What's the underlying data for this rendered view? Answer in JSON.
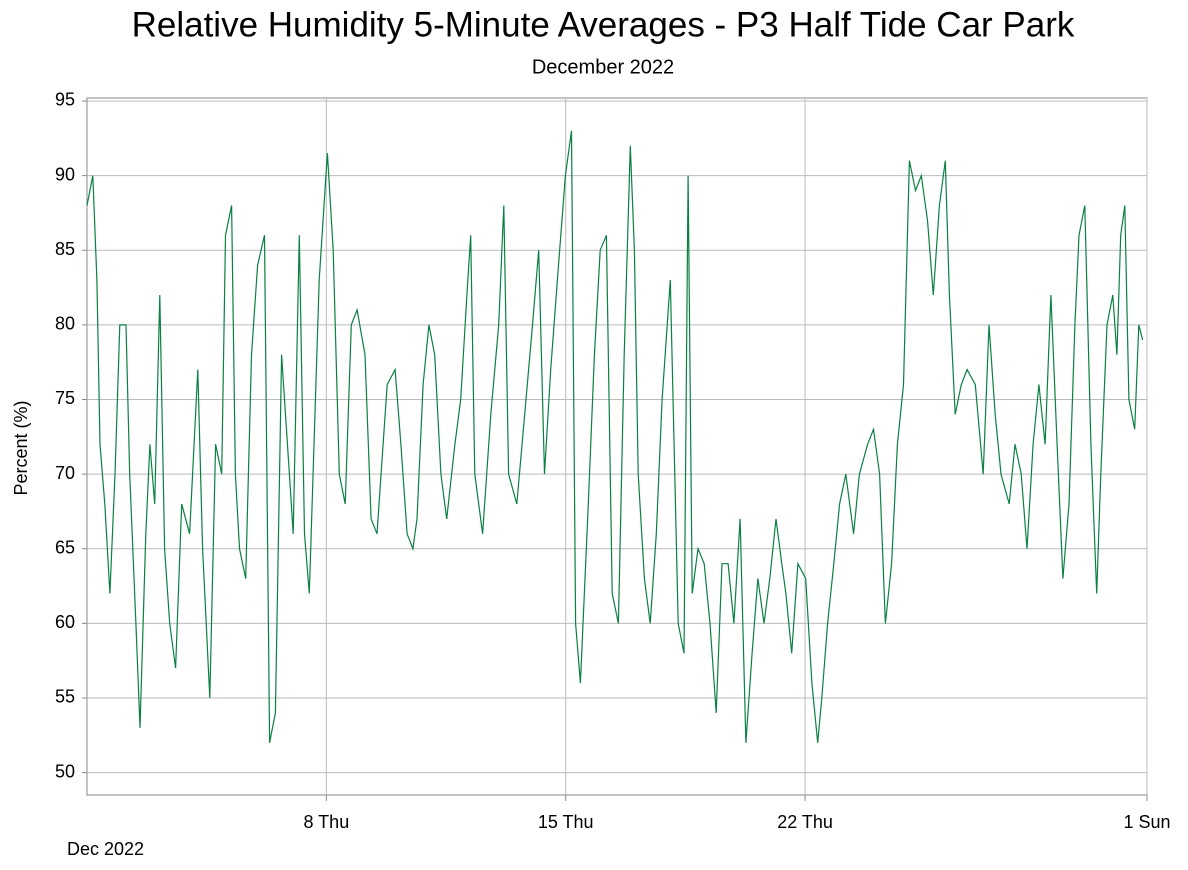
{
  "chart_data": {
    "type": "line",
    "title": "Relative Humidity 5-Minute Averages - P3 Half Tide Car Park",
    "subtitle": "December 2022",
    "ylabel": "Percent (%)",
    "xlabel": "Dec 2022",
    "xlim": [
      1,
      32
    ],
    "xticks": [
      {
        "value": 8,
        "label": "8 Thu"
      },
      {
        "value": 15,
        "label": "15 Thu"
      },
      {
        "value": 22,
        "label": "22 Thu"
      },
      {
        "value": 32,
        "label": "1 Sun"
      }
    ],
    "ylim": [
      48.5,
      95.2
    ],
    "yticks": [
      50,
      55,
      60,
      65,
      70,
      75,
      80,
      85,
      90,
      95
    ],
    "grid": true,
    "x": [
      1.0,
      1.17,
      1.29,
      1.38,
      1.52,
      1.67,
      1.82,
      1.96,
      2.14,
      2.25,
      2.43,
      2.55,
      2.72,
      2.84,
      2.98,
      3.13,
      3.27,
      3.42,
      3.59,
      3.77,
      4.0,
      4.24,
      4.38,
      4.59,
      4.76,
      4.94,
      5.05,
      5.23,
      5.34,
      5.46,
      5.64,
      5.81,
      5.99,
      6.19,
      6.34,
      6.51,
      6.69,
      6.92,
      7.03,
      7.21,
      7.36,
      7.5,
      7.79,
      8.03,
      8.2,
      8.38,
      8.55,
      8.73,
      8.9,
      9.13,
      9.31,
      9.48,
      9.66,
      9.78,
      10.01,
      10.18,
      10.36,
      10.53,
      10.65,
      10.83,
      11.0,
      11.17,
      11.35,
      11.52,
      11.76,
      11.93,
      12.11,
      12.22,
      12.34,
      12.57,
      12.81,
      13.04,
      13.19,
      13.33,
      13.57,
      13.8,
      14.03,
      14.21,
      14.38,
      14.56,
      14.79,
      14.99,
      15.17,
      15.29,
      15.43,
      15.66,
      15.84,
      16.01,
      16.19,
      16.36,
      16.54,
      16.71,
      16.89,
      17.01,
      17.12,
      17.3,
      17.47,
      17.65,
      17.82,
      18.06,
      18.29,
      18.46,
      18.58,
      18.7,
      18.87,
      19.05,
      19.22,
      19.4,
      19.57,
      19.75,
      19.92,
      20.1,
      20.27,
      20.45,
      20.62,
      20.8,
      20.97,
      21.15,
      21.32,
      21.44,
      21.61,
      21.79,
      22.02,
      22.2,
      22.37,
      22.49,
      22.66,
      22.84,
      23.01,
      23.19,
      23.42,
      23.59,
      23.83,
      24.0,
      24.18,
      24.35,
      24.53,
      24.7,
      24.88,
      25.05,
      25.23,
      25.4,
      25.58,
      25.75,
      25.93,
      26.1,
      26.22,
      26.39,
      26.57,
      26.74,
      26.98,
      27.21,
      27.38,
      27.56,
      27.73,
      27.97,
      28.14,
      28.32,
      28.49,
      28.67,
      28.84,
      29.02,
      29.19,
      29.37,
      29.54,
      29.72,
      29.89,
      30.01,
      30.18,
      30.36,
      30.53,
      30.65,
      30.83,
      31.0,
      31.12,
      31.23,
      31.35,
      31.47,
      31.64,
      31.76,
      31.87
    ],
    "series": [
      {
        "name": "Relative Humidity",
        "color": "#0a8043",
        "values": [
          88,
          90,
          83,
          72,
          68,
          62,
          70,
          80,
          80,
          70,
          60,
          53,
          66,
          72,
          68,
          82,
          65,
          60,
          57,
          68,
          66,
          77,
          65,
          55,
          72,
          70,
          86,
          88,
          70,
          65,
          63,
          78,
          84,
          86,
          52,
          54,
          78,
          70,
          66,
          86,
          66,
          62,
          83,
          91.5,
          85,
          70,
          68,
          80,
          81,
          78,
          67,
          66,
          72,
          76,
          77,
          72,
          66,
          65,
          67,
          76,
          80,
          78,
          70,
          67,
          72,
          75,
          82,
          86,
          70,
          66,
          74,
          80,
          88,
          70,
          68,
          74,
          80,
          85,
          70,
          77,
          84,
          90,
          93,
          60,
          56,
          68,
          78,
          85,
          86,
          62,
          60,
          78,
          92,
          85,
          70,
          63,
          60,
          66,
          75,
          83,
          60,
          58,
          90,
          62,
          65,
          64,
          60,
          54,
          64,
          64,
          60,
          67,
          52,
          58,
          63,
          60,
          63,
          67,
          64,
          62,
          58,
          64,
          63,
          56,
          52,
          55,
          60,
          64,
          68,
          70,
          66,
          70,
          72,
          73,
          70,
          60,
          64,
          72,
          76,
          91,
          89,
          90,
          87,
          82,
          88,
          91,
          82,
          74,
          76,
          77,
          76,
          70,
          80,
          74,
          70,
          68,
          72,
          70,
          65,
          72,
          76,
          72,
          82,
          72,
          63,
          68,
          80,
          86,
          88,
          72,
          62,
          70,
          80,
          82,
          78,
          86,
          88,
          75,
          73,
          80,
          79
        ]
      }
    ]
  }
}
